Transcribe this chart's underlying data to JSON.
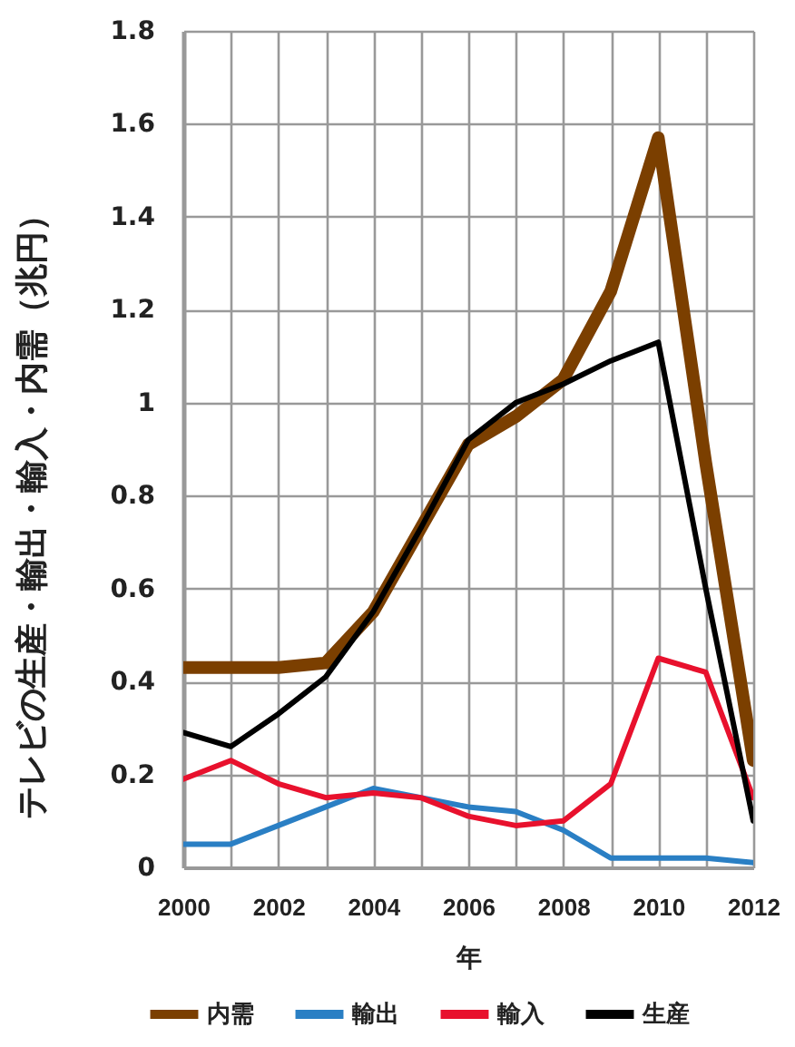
{
  "chart_data": {
    "type": "line",
    "xlabel": "年",
    "ylabel": "テレビの生産・輸出・輸入・内需（兆円）",
    "x": [
      2000,
      2001,
      2002,
      2003,
      2004,
      2005,
      2006,
      2007,
      2008,
      2009,
      2010,
      2011,
      2012
    ],
    "xlim": [
      2000,
      2012
    ],
    "xticks": [
      2000,
      {
        "value": 2001,
        "label": null
      },
      2002,
      {
        "value": 2003,
        "label": null
      },
      2004,
      {
        "value": 2005,
        "label": null
      },
      2006,
      {
        "value": 2007,
        "label": null
      },
      2008,
      {
        "value": 2009,
        "label": null
      },
      2010,
      {
        "value": 2011,
        "label": null
      },
      2012
    ],
    "ylim": [
      0,
      1.8
    ],
    "yticks": [
      0,
      0.2,
      0.4,
      0.6,
      0.8,
      1,
      1.2,
      1.4,
      1.6,
      1.8
    ],
    "grid": true,
    "legend": "bottom",
    "series": [
      {
        "name": "内需",
        "color": "#7b3f00",
        "values": [
          0.43,
          0.43,
          0.43,
          0.44,
          0.55,
          0.73,
          0.91,
          0.97,
          1.05,
          1.24,
          1.57,
          0.87,
          0.23
        ]
      },
      {
        "name": "輸出",
        "color": "#2a7fc4",
        "values": [
          0.05,
          0.05,
          0.09,
          0.13,
          0.17,
          0.15,
          0.13,
          0.12,
          0.08,
          0.02,
          0.02,
          0.02,
          0.01
        ]
      },
      {
        "name": "輸入",
        "color": "#e8112d",
        "values": [
          0.19,
          0.23,
          0.18,
          0.15,
          0.16,
          0.15,
          0.11,
          0.09,
          0.1,
          0.18,
          0.45,
          0.42,
          0.15
        ]
      },
      {
        "name": "生産",
        "color": "#000000",
        "values": [
          0.29,
          0.26,
          0.33,
          0.41,
          0.55,
          0.73,
          0.92,
          1.0,
          1.04,
          1.09,
          1.13,
          0.6,
          0.1
        ]
      }
    ]
  }
}
